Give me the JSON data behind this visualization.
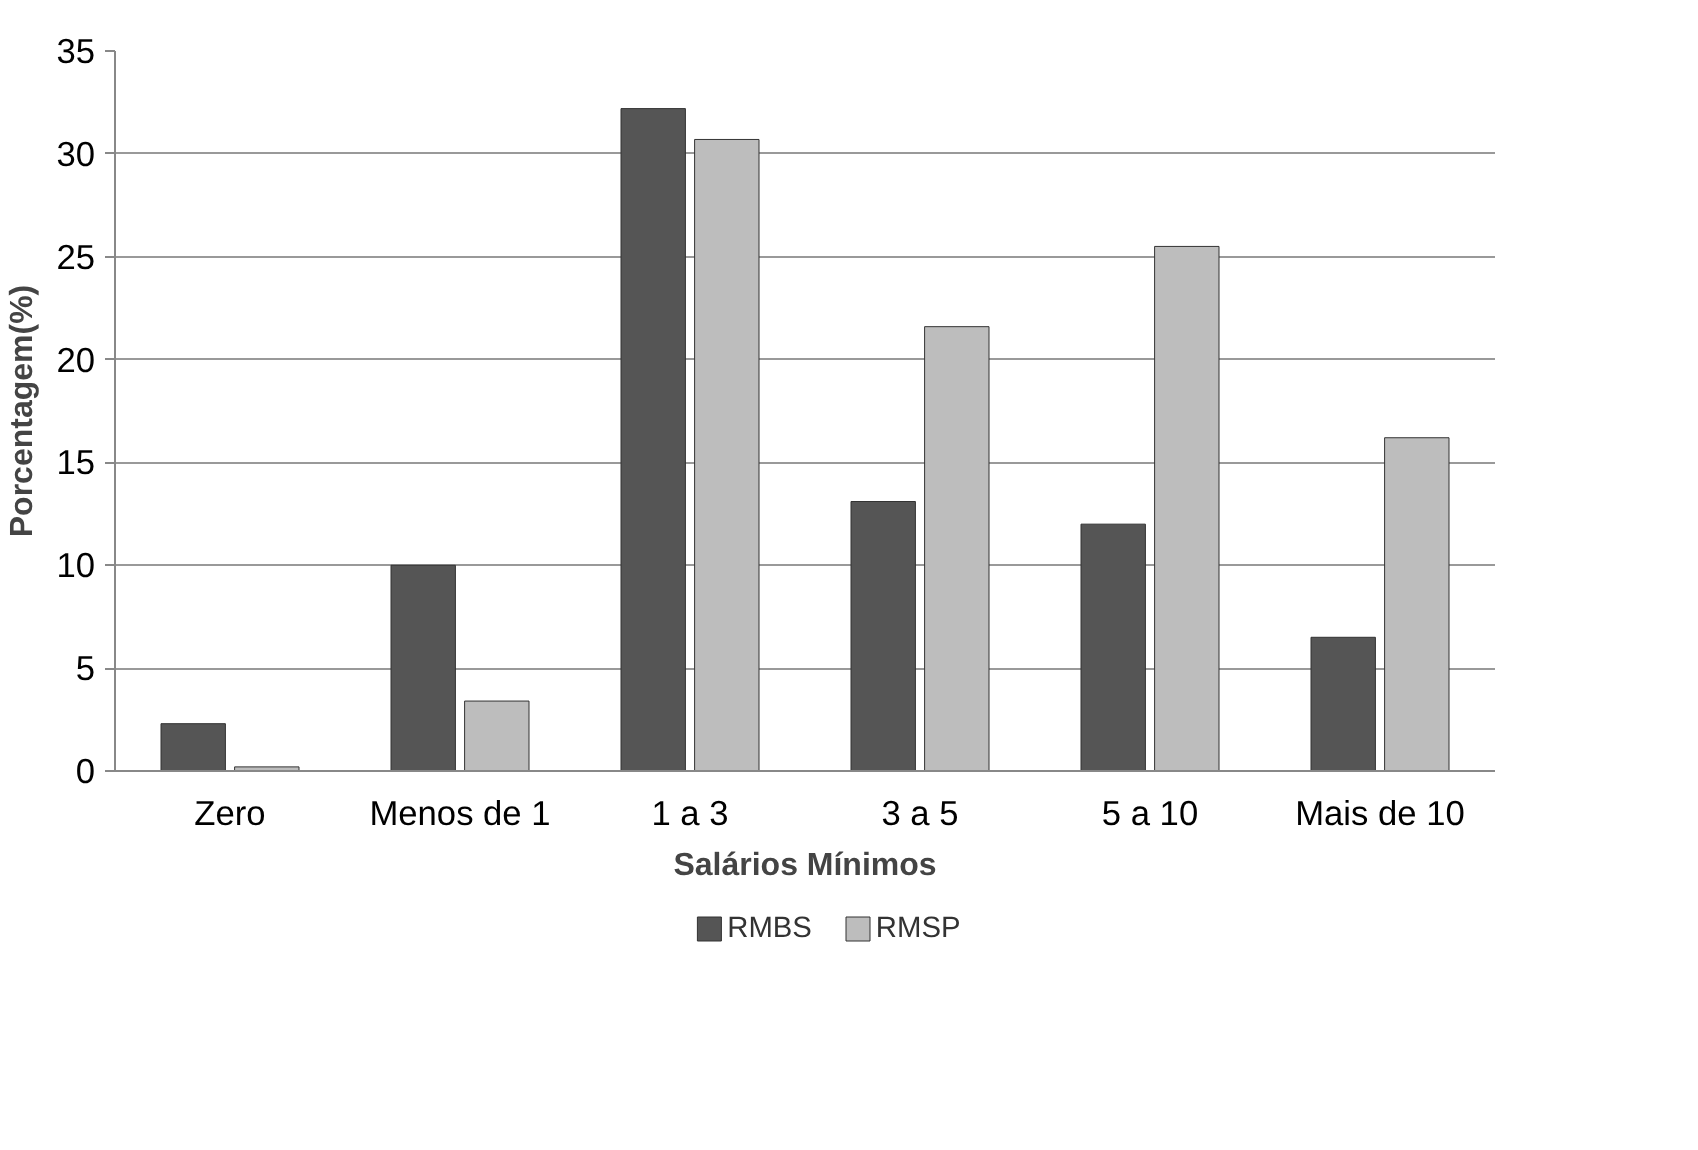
{
  "chart_data": {
    "type": "bar",
    "xlabel": "Salários Mínimos",
    "ylabel": "Porcentagem(%)",
    "categories": [
      "Zero",
      "Menos de 1",
      "1 a 3",
      "3 a 5",
      "5 a 10",
      "Mais de 10"
    ],
    "series": [
      {
        "name": "RMBS",
        "color": "#555555",
        "values": [
          2.3,
          10.0,
          32.2,
          13.1,
          12.0,
          6.5
        ]
      },
      {
        "name": "RMSP",
        "color": "#bdbdbd",
        "values": [
          0.2,
          3.4,
          30.7,
          21.6,
          25.5,
          16.2
        ]
      }
    ],
    "ylim": [
      0,
      35
    ],
    "yticks": [
      0,
      5,
      10,
      15,
      20,
      25,
      30,
      35
    ],
    "grid": "y",
    "legend": "bottom"
  }
}
